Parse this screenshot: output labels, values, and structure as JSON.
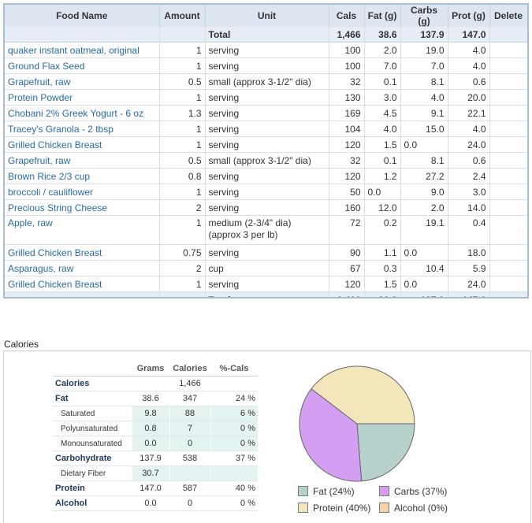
{
  "food_table": {
    "headers": {
      "name": "Food Name",
      "amount": "Amount",
      "unit": "Unit",
      "cals": "Cals",
      "fat": "Fat (g)",
      "carbs": "Carbs (g)",
      "prot": "Prot (g)",
      "delete": "Delete"
    },
    "total": {
      "label": "Total",
      "cals": "1,466",
      "fat": "38.6",
      "carbs": "137.9",
      "prot": "147.0"
    },
    "rows": [
      {
        "name": "quaker instant oatmeal, original",
        "amount": "1",
        "unit": "serving",
        "cals": "100",
        "fat": "2.0",
        "carbs": "19.0",
        "prot": "4.0"
      },
      {
        "name": "Ground Flax Seed",
        "amount": "1",
        "unit": "serving",
        "cals": "100",
        "fat": "7.0",
        "carbs": "7.0",
        "prot": "4.0"
      },
      {
        "name": "Grapefruit, raw",
        "amount": "0.5",
        "unit": "small (approx 3-1/2\" dia)",
        "cals": "32",
        "fat": "0.1",
        "carbs": "8.1",
        "prot": "0.6"
      },
      {
        "name": "Protein Powder",
        "amount": "1",
        "unit": "serving",
        "cals": "130",
        "fat": "3.0",
        "carbs": "4.0",
        "prot": "20.0"
      },
      {
        "name": "Chobani 2% Greek Yogurt - 6 oz",
        "amount": "1.3",
        "unit": "serving",
        "cals": "169",
        "fat": "4.5",
        "carbs": "9.1",
        "prot": "22.1"
      },
      {
        "name": "Tracey's Granola - 2 tbsp",
        "amount": "1",
        "unit": "serving",
        "cals": "104",
        "fat": "4.0",
        "carbs": "15.0",
        "prot": "4.0"
      },
      {
        "name": "Grilled Chicken Breast",
        "amount": "1",
        "unit": "serving",
        "cals": "120",
        "fat": "1.5",
        "carbs": "0.0",
        "prot": "24.0",
        "carbs_left": true
      },
      {
        "name": "Grapefruit, raw",
        "amount": "0.5",
        "unit": "small (approx 3-1/2\" dia)",
        "cals": "32",
        "fat": "0.1",
        "carbs": "8.1",
        "prot": "0.6"
      },
      {
        "name": "Brown Rice 2/3 cup",
        "amount": "0.8",
        "unit": "serving",
        "cals": "120",
        "fat": "1.2",
        "carbs": "27.2",
        "prot": "2.4"
      },
      {
        "name": "broccoli / cauliflower",
        "amount": "1",
        "unit": "serving",
        "cals": "50",
        "fat": "0.0",
        "carbs": "9.0",
        "prot": "3.0",
        "fat_left": true
      },
      {
        "name": "Precious String Cheese",
        "amount": "2",
        "unit": "serving",
        "cals": "160",
        "fat": "12.0",
        "carbs": "2.0",
        "prot": "14.0"
      },
      {
        "name": "Apple, raw",
        "amount": "1",
        "unit": "medium (2-3/4\" dia) (approx 3 per lb)",
        "cals": "72",
        "fat": "0.2",
        "carbs": "19.1",
        "prot": "0.4",
        "tall": true
      },
      {
        "name": "Grilled Chicken Breast",
        "amount": "0.75",
        "unit": "serving",
        "cals": "90",
        "fat": "1.1",
        "carbs": "0.0",
        "prot": "18.0",
        "carbs_left": true
      },
      {
        "name": "Asparagus, raw",
        "amount": "2",
        "unit": "cup",
        "cals": "67",
        "fat": "0.3",
        "carbs": "10.4",
        "prot": "5.9"
      },
      {
        "name": "Grilled Chicken Breast",
        "amount": "1",
        "unit": "serving",
        "cals": "120",
        "fat": "1.5",
        "carbs": "0.0",
        "prot": "24.0",
        "carbs_left": true
      }
    ]
  },
  "calories_section": {
    "title": "Calories",
    "table": {
      "headers": {
        "grams": "Grams",
        "calories": "Calories",
        "pct": "%-Cals"
      },
      "rows": [
        {
          "label": "Calories",
          "grams": "",
          "calories": "1,466",
          "pct": "",
          "sub": false,
          "shade": false
        },
        {
          "label": "Fat",
          "grams": "38.6",
          "calories": "347",
          "pct": "24 %",
          "sub": false,
          "shade": false
        },
        {
          "label": "Saturated",
          "grams": "9.8",
          "calories": "88",
          "pct": "6 %",
          "sub": true,
          "shade": true
        },
        {
          "label": "Polyunsaturated",
          "grams": "0.8",
          "calories": "7",
          "pct": "0 %",
          "sub": true,
          "shade": true
        },
        {
          "label": "Monounsaturated",
          "grams": "0.0",
          "calories": "0",
          "pct": "0 %",
          "sub": true,
          "shade": true
        },
        {
          "label": "Carbohydrate",
          "grams": "137.9",
          "calories": "538",
          "pct": "37 %",
          "sub": false,
          "shade": false
        },
        {
          "label": "Dietary Fiber",
          "grams": "30.7",
          "calories": "",
          "pct": "",
          "sub": true,
          "shade": true
        },
        {
          "label": "Protein",
          "grams": "147.0",
          "calories": "587",
          "pct": "40 %",
          "sub": false,
          "shade": false
        },
        {
          "label": "Alcohol",
          "grams": "0.0",
          "calories": "0",
          "pct": "0 %",
          "sub": false,
          "shade": false
        }
      ]
    },
    "pie": {
      "slices": [
        {
          "name": "Fat",
          "percent": 24,
          "color": "#b7d2cc"
        },
        {
          "name": "Carbs",
          "percent": 37,
          "color": "#d49ff2"
        },
        {
          "name": "Protein",
          "percent": 40,
          "color": "#f4e6bb"
        },
        {
          "name": "Alcohol",
          "percent": 0,
          "color": "#f5d0a9"
        }
      ],
      "legend": [
        {
          "label": "Fat (24%)",
          "color": "#b7d2cc"
        },
        {
          "label": "Carbs (37%)",
          "color": "#d49ff2"
        },
        {
          "label": "Protein (40%)",
          "color": "#f4e6bb"
        },
        {
          "label": "Alcohol (0%)",
          "color": "#f5d0a9"
        }
      ]
    }
  }
}
